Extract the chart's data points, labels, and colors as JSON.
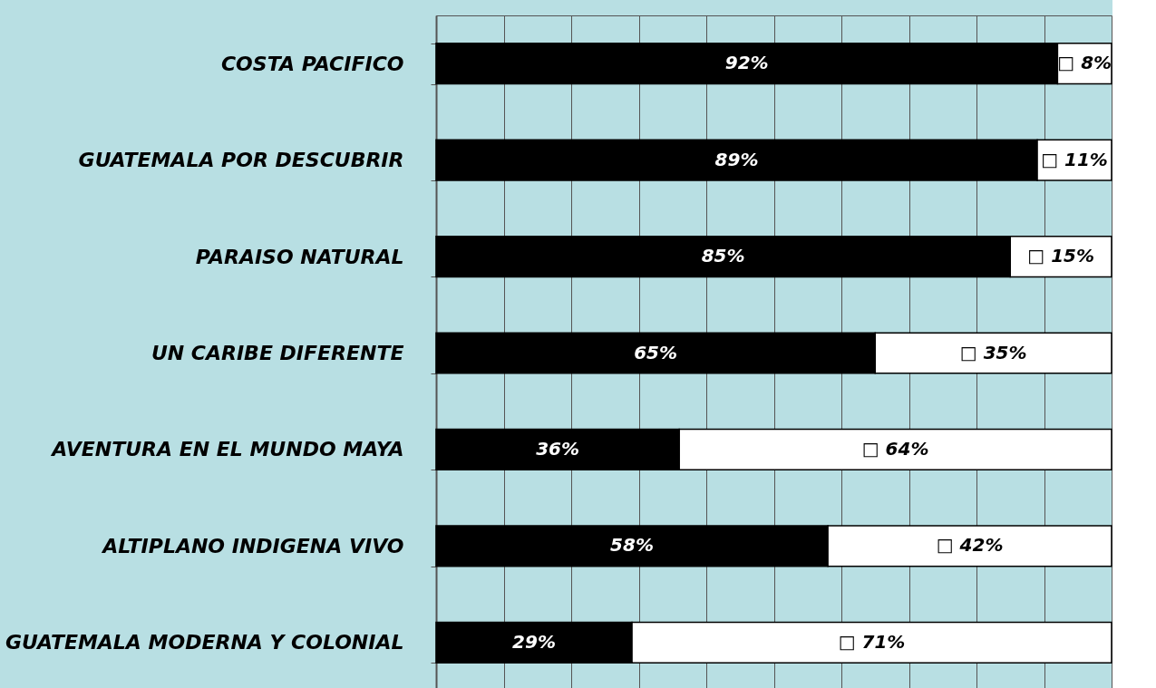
{
  "chart_data": {
    "type": "bar",
    "orientation": "horizontal",
    "stacked": true,
    "categories": [
      "COSTA PACIFICO",
      "GUATEMALA POR DESCUBRIR",
      "PARAISO NATURAL",
      "UN CARIBE DIFERENTE",
      "AVENTURA EN EL MUNDO MAYA",
      "ALTIPLANO INDIGENA VIVO",
      "GUATEMALA MODERNA Y COLONIAL"
    ],
    "series": [
      {
        "color": "#000000",
        "values": [
          92,
          89,
          85,
          65,
          36,
          58,
          29
        ],
        "value_labels": [
          "92%",
          "89%",
          "85%",
          "65%",
          "36%",
          "58%",
          "29%"
        ]
      },
      {
        "color": "#ffffff",
        "values": [
          8,
          11,
          15,
          35,
          64,
          42,
          71
        ],
        "value_labels": [
          "□ 8%",
          "□ 11%",
          "□ 15%",
          "□ 35%",
          "□ 64%",
          "□ 42%",
          "□ 71%"
        ]
      }
    ],
    "xlim": [
      0,
      100
    ],
    "xticks": [
      {
        "value": 0,
        "label": null
      },
      {
        "value": 10,
        "label": null
      },
      {
        "value": 20,
        "label": null
      },
      {
        "value": 30,
        "label": null
      },
      {
        "value": 40,
        "label": null
      },
      {
        "value": 50,
        "label": null
      },
      {
        "value": 60,
        "label": null
      },
      {
        "value": 70,
        "label": null
      },
      {
        "value": 80,
        "label": null
      },
      {
        "value": 90,
        "label": null
      },
      {
        "value": 100,
        "label": null
      }
    ],
    "tick_labels": "y",
    "grid": "x"
  }
}
